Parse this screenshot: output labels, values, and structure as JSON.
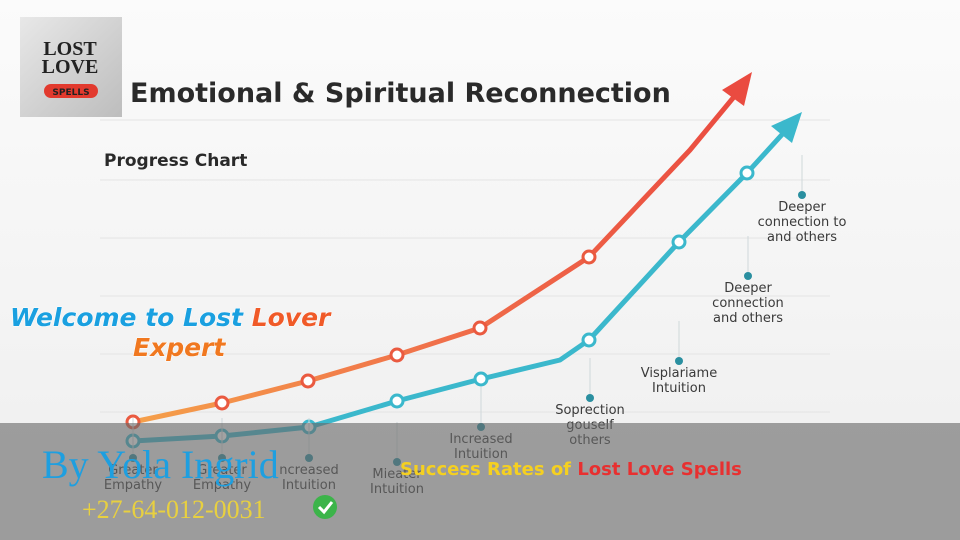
{
  "logo": {
    "line1": "LOST",
    "line2": "LOVE",
    "badge": "SPELLS"
  },
  "title": "Emotional & Spiritual Reconnection",
  "subtitle": "Progress Chart",
  "labels": [
    [
      "Greater",
      "Empathy"
    ],
    [
      "Greater",
      "Empathy"
    ],
    [
      "ncreased",
      "Intuition"
    ],
    [
      "Mieater",
      "Intuition"
    ],
    [
      "Increased",
      "Intuition"
    ],
    [
      "Soprection",
      "gouself",
      "others"
    ],
    [
      "Visplariame",
      "Intuition"
    ],
    [
      "Deeper",
      "connection",
      "and others"
    ],
    [
      "Deeper",
      "connection to",
      "and others"
    ]
  ],
  "welcome": {
    "part1": "Welcome to Lost",
    "highlight": "Lover",
    "line2": "Expert"
  },
  "author": "By Yola Ingrid",
  "phone": "+27-64-012-0031",
  "promo": {
    "part1": "Success Rates of",
    "highlight": "Lost Love Spells"
  }
}
